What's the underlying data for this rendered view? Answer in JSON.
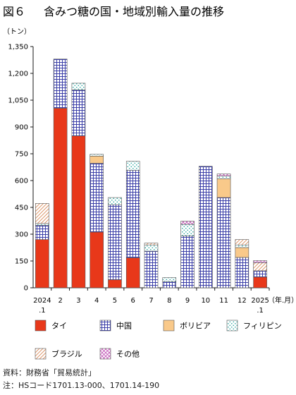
{
  "figure_label": "図６",
  "title": "含みつ糖の国・地域別輸入量の推移",
  "colors": {
    "thai": "#e8381a",
    "china_line": "#3b3fa8",
    "bolivia": "#f9c98a",
    "philippines_dot": "#2aa6a0",
    "brazil_line": "#d98b5a",
    "other_line": "#c04fb5",
    "axis": "#1a1a1a"
  },
  "chart_data": {
    "type": "bar",
    "stacked": true,
    "title": "含みつ糖の国・地域別輸入量の推移",
    "ylabel": "（トン）",
    "xlabel": "（年.月）",
    "ylim": [
      0,
      1350
    ],
    "yticks": [
      0,
      150,
      300,
      450,
      600,
      750,
      900,
      1050,
      1200,
      1350
    ],
    "ytick_labels": [
      "0",
      "150",
      "300",
      "450",
      "600",
      "750",
      "900",
      "1,050",
      "1,200",
      "1,350"
    ],
    "categories": [
      "2024\n.1",
      "2",
      "3",
      "4",
      "5",
      "6",
      "7",
      "8",
      "9",
      "10",
      "11",
      "12",
      "2025\n.1"
    ],
    "series": [
      {
        "name": "タイ",
        "key": "thai",
        "values": [
          270,
          1005,
          850,
          312,
          45,
          168,
          0,
          0,
          0,
          0,
          0,
          0,
          60
        ]
      },
      {
        "name": "中国",
        "key": "china",
        "values": [
          80,
          275,
          258,
          385,
          420,
          490,
          205,
          35,
          290,
          680,
          505,
          170,
          35
        ]
      },
      {
        "name": "ボリビア",
        "key": "bolivia",
        "values": [
          0,
          0,
          0,
          40,
          0,
          0,
          0,
          0,
          0,
          0,
          105,
          55,
          0
        ]
      },
      {
        "name": "フィリピン",
        "key": "philippines",
        "values": [
          10,
          0,
          37,
          10,
          40,
          50,
          35,
          22,
          65,
          0,
          15,
          15,
          0
        ]
      },
      {
        "name": "ブラジル",
        "key": "brazil",
        "values": [
          112,
          0,
          0,
          0,
          0,
          0,
          10,
          0,
          0,
          0,
          0,
          30,
          45
        ]
      },
      {
        "name": "その他",
        "key": "other",
        "values": [
          0,
          0,
          0,
          0,
          0,
          0,
          0,
          0,
          18,
          0,
          12,
          0,
          12
        ]
      }
    ],
    "grid": false,
    "legend_position": "bottom"
  },
  "source_note": "資料：財務省「貿易統計」",
  "hs_note": "注：HSコード1701.13-000、1701.14-190"
}
